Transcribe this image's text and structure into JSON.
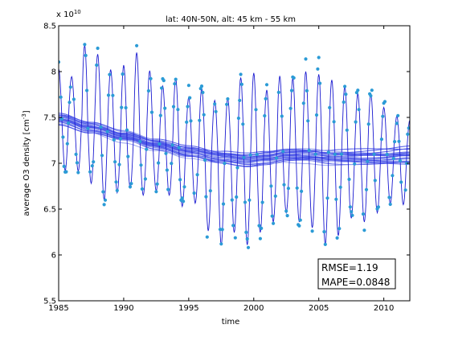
{
  "chart_data": {
    "type": "line",
    "title": "lat: 40N-50N, alt: 45 km - 55 km",
    "xlabel": "time",
    "ylabel_main": "average O3 density [cm",
    "ylabel_exp": "-3",
    "ylabel_close": "]",
    "y_multiplier": "x 10",
    "y_multiplier_exp": "10",
    "xlim": [
      1985,
      2012
    ],
    "ylim": [
      5.5,
      8.5
    ],
    "x_ticks": [
      1985,
      1990,
      1995,
      2000,
      2005,
      2010
    ],
    "y_ticks": [
      5.5,
      6,
      6.5,
      7,
      7.5,
      8,
      8.5
    ],
    "x_tick_labels": [
      "1985",
      "1990",
      "1995",
      "2000",
      "2005",
      "2010"
    ],
    "y_tick_labels": [
      "5.5",
      "6",
      "6.5",
      "7",
      "7.5",
      "8",
      "8.5"
    ],
    "grid": false,
    "colors": {
      "observed": "#2b9bd6",
      "fit_line": "#1a1ad0",
      "trend": "#4b57e8",
      "trend_light": "#9aa4ee"
    },
    "trend_anchors": {
      "x": [
        1985.0,
        1987.5,
        1990.0,
        1992.5,
        1995.0,
        1997.5,
        1999.5,
        2001.0,
        2002.5,
        2004.0,
        2006.0,
        2008.0,
        2010.0,
        2012.0
      ],
      "y": [
        7.48,
        7.38,
        7.29,
        7.2,
        7.12,
        7.06,
        7.03,
        7.05,
        7.08,
        7.08,
        7.06,
        7.06,
        7.06,
        7.07
      ]
    },
    "seasonal": {
      "amplitudes": [
        0.55,
        0.5,
        0.9,
        0.82,
        0.7,
        0.78,
        0.95,
        0.8,
        0.65,
        0.78,
        0.6,
        0.72,
        0.62,
        0.65,
        0.9,
        0.95,
        0.75,
        0.88,
        0.85,
        0.92,
        0.9,
        0.85,
        0.78,
        0.7,
        0.7,
        0.55,
        0.45,
        0.4,
        0.35
      ],
      "troughs": [
        0.55,
        0.5,
        0.6,
        0.75,
        0.62,
        0.55,
        0.58,
        0.5,
        0.52,
        0.6,
        0.55,
        0.82,
        0.95,
        0.8,
        0.92,
        0.8,
        0.7,
        0.62,
        0.72,
        0.78,
        0.95,
        0.85,
        0.66,
        0.7,
        0.6,
        0.5,
        0.52,
        0.48,
        0.4
      ]
    },
    "metrics": {
      "rmse": "RMSE=1.19",
      "mape": "MAPE=0.0848"
    }
  }
}
